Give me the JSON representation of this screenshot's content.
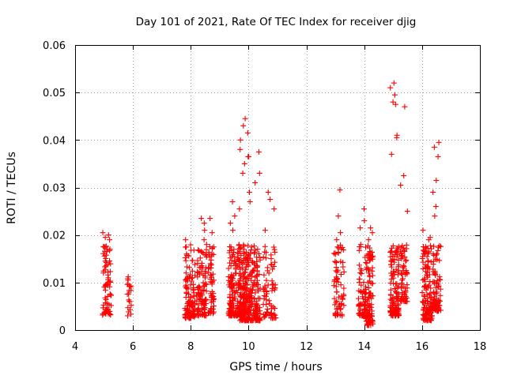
{
  "chart_data": {
    "type": "scatter",
    "title": "Day 101 of 2021, Rate Of TEC Index for receiver djig",
    "xlabel": "GPS time / hours",
    "ylabel": "ROTI / TECUs",
    "xlim": [
      4,
      18
    ],
    "ylim": [
      0,
      0.06
    ],
    "xticks": [
      4,
      6,
      8,
      10,
      12,
      14,
      16,
      18
    ],
    "xtick_labels": [
      "4",
      "6",
      "8",
      "10",
      "12",
      "14",
      "16",
      "18"
    ],
    "yticks": [
      0,
      0.01,
      0.02,
      0.03,
      0.04,
      0.05,
      0.06
    ],
    "ytick_labels": [
      "0",
      "0.01",
      "0.02",
      "0.03",
      "0.04",
      "0.05",
      "0.06"
    ],
    "grid": true,
    "marker": "+",
    "series_color": "#ff0000",
    "clusters": [
      {
        "x_start": 4.95,
        "x_end": 5.25,
        "y_min": 0.003,
        "y_max": 0.0205,
        "count": 70,
        "peaks": [
          0.0205,
          0.02,
          0.0195,
          0.019,
          0.0175,
          0.0165
        ]
      },
      {
        "x_start": 5.8,
        "x_end": 5.95,
        "y_min": 0.003,
        "y_max": 0.011,
        "count": 18,
        "peaks": [
          0.0112,
          0.0108,
          0.0105
        ]
      },
      {
        "x_start": 7.8,
        "x_end": 8.15,
        "y_min": 0.0025,
        "y_max": 0.019,
        "count": 110,
        "peaks": [
          0.019,
          0.0175,
          0.016
        ]
      },
      {
        "x_start": 8.2,
        "x_end": 8.55,
        "y_min": 0.003,
        "y_max": 0.0235,
        "count": 100,
        "peaks": [
          0.0235,
          0.0225,
          0.021,
          0.019,
          0.018
        ]
      },
      {
        "x_start": 8.6,
        "x_end": 8.8,
        "y_min": 0.0035,
        "y_max": 0.0235,
        "count": 55,
        "peaks": [
          0.0235,
          0.0205,
          0.0175
        ]
      },
      {
        "x_start": 9.3,
        "x_end": 9.7,
        "y_min": 0.003,
        "y_max": 0.027,
        "count": 150,
        "peaks": [
          0.027,
          0.0255,
          0.024,
          0.0225,
          0.021
        ]
      },
      {
        "x_start": 9.7,
        "x_end": 10.0,
        "y_min": 0.002,
        "y_max": 0.044,
        "count": 170,
        "peaks": [
          0.0445,
          0.043,
          0.0415,
          0.04,
          0.038,
          0.0365,
          0.035,
          0.033
        ]
      },
      {
        "x_start": 10.0,
        "x_end": 10.4,
        "y_min": 0.002,
        "y_max": 0.037,
        "count": 140,
        "peaks": [
          0.0375,
          0.0365,
          0.033,
          0.031,
          0.029,
          0.027
        ]
      },
      {
        "x_start": 10.5,
        "x_end": 10.95,
        "y_min": 0.0025,
        "y_max": 0.029,
        "count": 70,
        "peaks": [
          0.029,
          0.0275,
          0.0255,
          0.021
        ]
      },
      {
        "x_start": 12.95,
        "x_end": 13.3,
        "y_min": 0.003,
        "y_max": 0.029,
        "count": 70,
        "peaks": [
          0.0295,
          0.024,
          0.0205,
          0.019
        ]
      },
      {
        "x_start": 13.8,
        "x_end": 14.05,
        "y_min": 0.003,
        "y_max": 0.025,
        "count": 70,
        "peaks": [
          0.0255,
          0.023,
          0.0215,
          0.018
        ]
      },
      {
        "x_start": 14.05,
        "x_end": 14.3,
        "y_min": 0.001,
        "y_max": 0.022,
        "count": 100,
        "peaks": [
          0.0215,
          0.0205,
          0.019
        ]
      },
      {
        "x_start": 14.9,
        "x_end": 15.2,
        "y_min": 0.003,
        "y_max": 0.052,
        "count": 120,
        "peaks": [
          0.052,
          0.051,
          0.0495,
          0.048,
          0.0475,
          0.041,
          0.0405,
          0.037
        ]
      },
      {
        "x_start": 15.25,
        "x_end": 15.5,
        "y_min": 0.006,
        "y_max": 0.047,
        "count": 60,
        "peaks": [
          0.047,
          0.0325,
          0.0305,
          0.025
        ]
      },
      {
        "x_start": 16.0,
        "x_end": 16.35,
        "y_min": 0.002,
        "y_max": 0.021,
        "count": 120,
        "peaks": [
          0.021,
          0.0195,
          0.019
        ]
      },
      {
        "x_start": 16.35,
        "x_end": 16.65,
        "y_min": 0.004,
        "y_max": 0.0395,
        "count": 90,
        "peaks": [
          0.0395,
          0.0385,
          0.0365,
          0.0315,
          0.029,
          0.026,
          0.024
        ]
      }
    ]
  }
}
